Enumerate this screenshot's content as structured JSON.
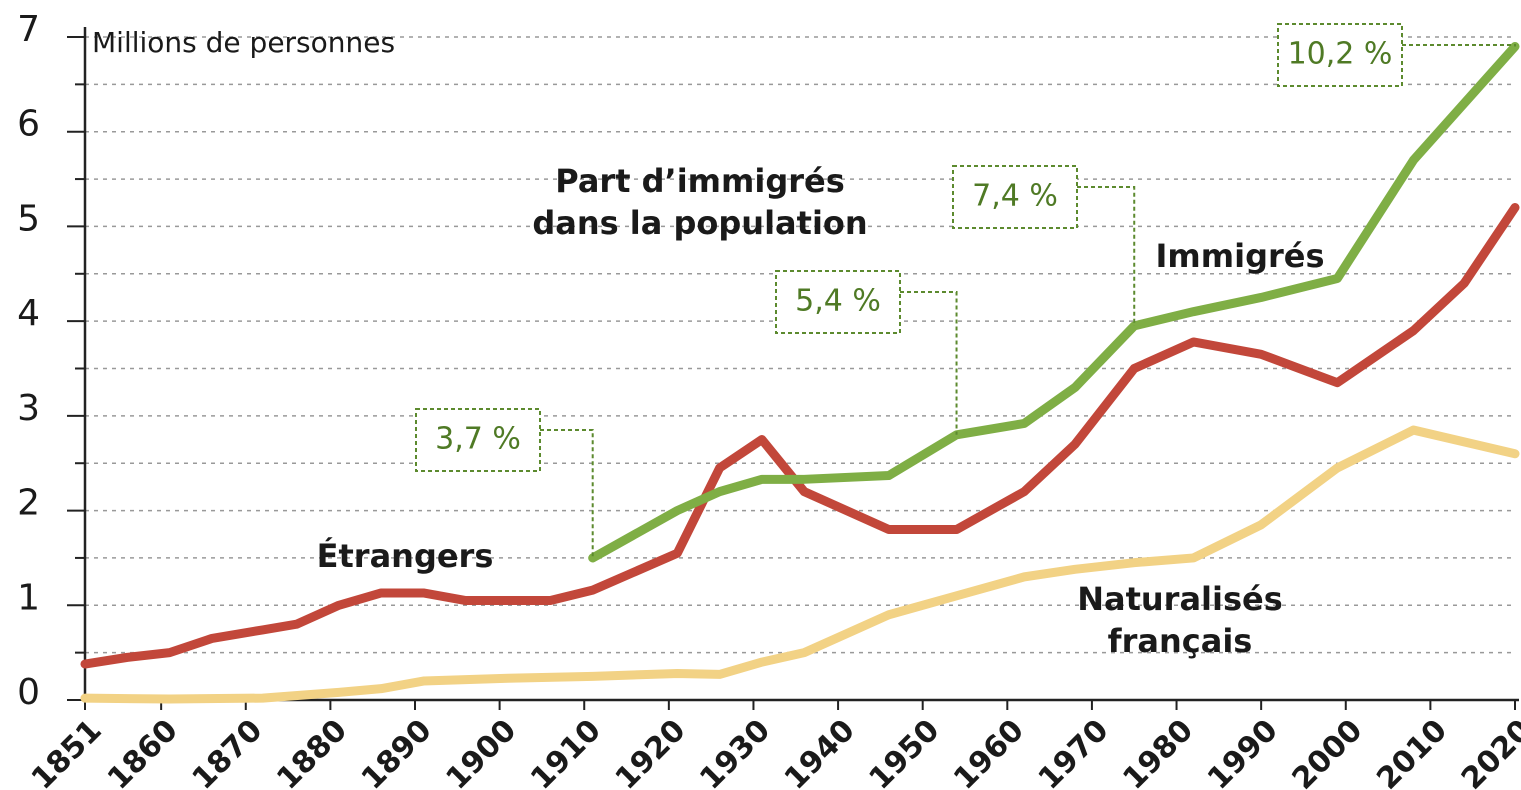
{
  "chart_data": {
    "type": "line",
    "y_axis_label": "Millions de personnes",
    "annotation_title": "Part d’immigrés dans la population",
    "xlim": [
      1851,
      2020
    ],
    "xticks": [
      1851,
      1860,
      1870,
      1880,
      1890,
      1900,
      1910,
      1920,
      1930,
      1940,
      1950,
      1960,
      1970,
      1980,
      1990,
      2000,
      2010,
      2020
    ],
    "ylim": [
      0,
      7
    ],
    "yticks": [
      0,
      1,
      2,
      3,
      4,
      5,
      6,
      7
    ],
    "yminorticks": [
      0.5,
      1.5,
      2.5,
      3.5,
      4.5,
      5.5,
      6.5
    ],
    "grid": true,
    "series": [
      {
        "name": "Étrangers",
        "color": "#c2473a",
        "x": [
          1851,
          1856,
          1861,
          1866,
          1872,
          1876,
          1881,
          1886,
          1891,
          1896,
          1901,
          1906,
          1911,
          1921,
          1926,
          1931,
          1936,
          1946,
          1954,
          1962,
          1968,
          1975,
          1982,
          1990,
          1999,
          2008,
          2014,
          2020
        ],
        "values": [
          0.38,
          0.45,
          0.5,
          0.65,
          0.74,
          0.8,
          1.0,
          1.13,
          1.13,
          1.05,
          1.05,
          1.05,
          1.16,
          1.55,
          2.45,
          2.75,
          2.2,
          1.8,
          1.8,
          2.2,
          2.7,
          3.5,
          3.78,
          3.65,
          3.35,
          3.9,
          4.4,
          5.2
        ]
      },
      {
        "name": "Immigrés",
        "color": "#7fae45",
        "x": [
          1911,
          1921,
          1926,
          1931,
          1936,
          1946,
          1954,
          1962,
          1968,
          1975,
          1982,
          1990,
          1999,
          2008,
          2020
        ],
        "values": [
          1.5,
          2.0,
          2.2,
          2.33,
          2.33,
          2.37,
          2.8,
          2.92,
          3.3,
          3.95,
          4.1,
          4.25,
          4.45,
          5.7,
          6.9
        ]
      },
      {
        "name": "Naturalisés français",
        "color": "#f2d285",
        "x": [
          1851,
          1861,
          1872,
          1881,
          1886,
          1891,
          1901,
          1911,
          1921,
          1926,
          1931,
          1936,
          1946,
          1954,
          1962,
          1968,
          1975,
          1982,
          1990,
          1999,
          2008,
          2020
        ],
        "values": [
          0.02,
          0.01,
          0.02,
          0.08,
          0.12,
          0.2,
          0.23,
          0.25,
          0.28,
          0.27,
          0.4,
          0.5,
          0.9,
          1.1,
          1.3,
          1.38,
          1.45,
          1.5,
          1.85,
          2.45,
          2.85,
          2.6
        ]
      }
    ],
    "share_labels": [
      {
        "x": 1911,
        "value": 3.7,
        "label": "3,7 %"
      },
      {
        "x": 1954,
        "value": 5.4,
        "label": "5,4 %"
      },
      {
        "x": 1975,
        "value": 7.4,
        "label": "7,4 %"
      },
      {
        "x": 2020,
        "value": 10.2,
        "label": "10,2 %"
      }
    ]
  }
}
